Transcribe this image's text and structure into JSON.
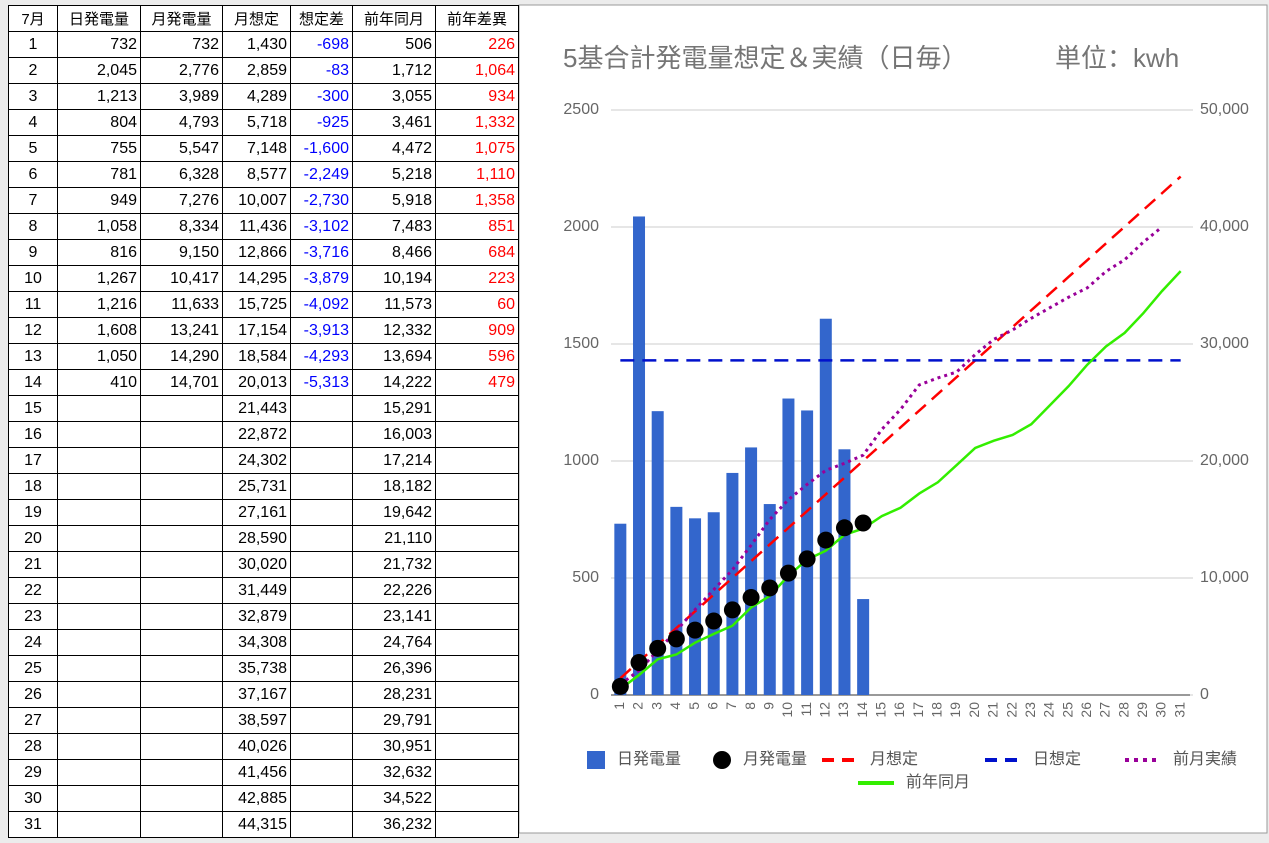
{
  "table": {
    "header": [
      "7月",
      "日発電量",
      "月発電量",
      "月想定",
      "想定差",
      "前年同月",
      "前年差異"
    ],
    "rows": [
      [
        "1",
        "732",
        "732",
        "1,430",
        "-698",
        "506",
        "226"
      ],
      [
        "2",
        "2,045",
        "2,776",
        "2,859",
        "-83",
        "1,712",
        "1,064"
      ],
      [
        "3",
        "1,213",
        "3,989",
        "4,289",
        "-300",
        "3,055",
        "934"
      ],
      [
        "4",
        "804",
        "4,793",
        "5,718",
        "-925",
        "3,461",
        "1,332"
      ],
      [
        "5",
        "755",
        "5,547",
        "7,148",
        "-1,600",
        "4,472",
        "1,075"
      ],
      [
        "6",
        "781",
        "6,328",
        "8,577",
        "-2,249",
        "5,218",
        "1,110"
      ],
      [
        "7",
        "949",
        "7,276",
        "10,007",
        "-2,730",
        "5,918",
        "1,358"
      ],
      [
        "8",
        "1,058",
        "8,334",
        "11,436",
        "-3,102",
        "7,483",
        "851"
      ],
      [
        "9",
        "816",
        "9,150",
        "12,866",
        "-3,716",
        "8,466",
        "684"
      ],
      [
        "10",
        "1,267",
        "10,417",
        "14,295",
        "-3,879",
        "10,194",
        "223"
      ],
      [
        "11",
        "1,216",
        "11,633",
        "15,725",
        "-4,092",
        "11,573",
        "60"
      ],
      [
        "12",
        "1,608",
        "13,241",
        "17,154",
        "-3,913",
        "12,332",
        "909"
      ],
      [
        "13",
        "1,050",
        "14,290",
        "18,584",
        "-4,293",
        "13,694",
        "596"
      ],
      [
        "14",
        "410",
        "14,701",
        "20,013",
        "-5,313",
        "14,222",
        "479"
      ],
      [
        "15",
        null,
        null,
        "21,443",
        null,
        "15,291",
        null
      ],
      [
        "16",
        null,
        null,
        "22,872",
        null,
        "16,003",
        null
      ],
      [
        "17",
        null,
        null,
        "24,302",
        null,
        "17,214",
        null
      ],
      [
        "18",
        null,
        null,
        "25,731",
        null,
        "18,182",
        null
      ],
      [
        "19",
        null,
        null,
        "27,161",
        null,
        "19,642",
        null
      ],
      [
        "20",
        null,
        null,
        "28,590",
        null,
        "21,110",
        null
      ],
      [
        "21",
        null,
        null,
        "30,020",
        null,
        "21,732",
        null
      ],
      [
        "22",
        null,
        null,
        "31,449",
        null,
        "22,226",
        null
      ],
      [
        "23",
        null,
        null,
        "32,879",
        null,
        "23,141",
        null
      ],
      [
        "24",
        null,
        null,
        "34,308",
        null,
        "24,764",
        null
      ],
      [
        "25",
        null,
        null,
        "35,738",
        null,
        "26,396",
        null
      ],
      [
        "26",
        null,
        null,
        "37,167",
        null,
        "28,231",
        null
      ],
      [
        "27",
        null,
        null,
        "38,597",
        null,
        "29,791",
        null
      ],
      [
        "28",
        null,
        null,
        "40,026",
        null,
        "30,951",
        null
      ],
      [
        "29",
        null,
        null,
        "41,456",
        null,
        "32,632",
        null
      ],
      [
        "30",
        null,
        null,
        "42,885",
        null,
        "34,522",
        null
      ],
      [
        "31",
        null,
        null,
        "44,315",
        null,
        "36,232",
        null
      ]
    ]
  },
  "chart_data": {
    "type": "combo",
    "title": "5基合計発電量想定＆実績（日毎）",
    "subtitle": "単位：kwh",
    "categories": [
      "1",
      "2",
      "3",
      "4",
      "5",
      "6",
      "7",
      "8",
      "9",
      "10",
      "11",
      "12",
      "13",
      "14",
      "15",
      "16",
      "17",
      "18",
      "19",
      "20",
      "21",
      "22",
      "23",
      "24",
      "25",
      "26",
      "27",
      "28",
      "29",
      "30",
      "31"
    ],
    "ylim": [
      0,
      2500
    ],
    "yticks": [
      0,
      500,
      1000,
      1500,
      2000,
      2500
    ],
    "y2lim": [
      0,
      50000
    ],
    "y2ticks": [
      0,
      {
        "value": 10000,
        "label": "10,000"
      },
      {
        "value": 20000,
        "label": "20,000"
      },
      {
        "value": 30000,
        "label": "30,000"
      },
      {
        "value": 40000,
        "label": "40,000"
      },
      {
        "value": 50000,
        "label": "50,000"
      }
    ],
    "grid": true,
    "legend": "bottom",
    "series": [
      {
        "name": "日発電量",
        "type": "bar",
        "color": "#3366cc",
        "values": [
          732,
          2045,
          1213,
          804,
          755,
          781,
          949,
          1058,
          816,
          1267,
          1216,
          1608,
          1050,
          410,
          null,
          null,
          null,
          null,
          null,
          null,
          null,
          null,
          null,
          null,
          null,
          null,
          null,
          null,
          null,
          null,
          null
        ]
      },
      {
        "name": "月発電量",
        "type": "scatter",
        "color": "#000000",
        "axis": "y2",
        "values": [
          732,
          2776,
          3989,
          4793,
          5547,
          6328,
          7276,
          8334,
          9150,
          10417,
          11633,
          13241,
          14290,
          14701,
          null,
          null,
          null,
          null,
          null,
          null,
          null,
          null,
          null,
          null,
          null,
          null,
          null,
          null,
          null,
          null,
          null
        ]
      },
      {
        "name": "月想定",
        "type": "line",
        "dash": "dashed",
        "color": "#ff0000",
        "axis": "y2",
        "values": [
          1430,
          2859,
          4289,
          5718,
          7148,
          8577,
          10007,
          11436,
          12866,
          14295,
          15725,
          17154,
          18584,
          20013,
          21443,
          22872,
          24302,
          25731,
          27161,
          28590,
          30020,
          31449,
          32879,
          34308,
          35738,
          37167,
          38597,
          40026,
          41456,
          42885,
          44315
        ]
      },
      {
        "name": "日想定",
        "type": "line",
        "dash": "dashed",
        "color": "#0011cc",
        "values": [
          1430,
          1430,
          1430,
          1430,
          1430,
          1430,
          1430,
          1430,
          1430,
          1430,
          1430,
          1430,
          1430,
          1430,
          1430,
          1430,
          1430,
          1430,
          1430,
          1430,
          1430,
          1430,
          1430,
          1430,
          1430,
          1430,
          1430,
          1430,
          1430,
          1430,
          1430
        ]
      },
      {
        "name": "前月実績",
        "type": "line",
        "dash": "dotted",
        "color": "#990099",
        "axis": "y2",
        "values": [
          900,
          2100,
          3800,
          5500,
          7300,
          9000,
          10700,
          12800,
          15000,
          16700,
          18000,
          19200,
          19800,
          20500,
          22700,
          24400,
          26500,
          27100,
          27600,
          29100,
          30400,
          31200,
          32200,
          33100,
          34000,
          34800,
          36200,
          37200,
          38700,
          40000,
          null
        ]
      },
      {
        "name": "前年同月",
        "type": "line",
        "dash": "solid",
        "color": "#33ee00",
        "axis": "y2",
        "values": [
          506,
          1712,
          3055,
          3461,
          4472,
          5218,
          5918,
          7483,
          8466,
          10194,
          11573,
          12332,
          13694,
          14222,
          15291,
          16003,
          17214,
          18182,
          19642,
          21110,
          21732,
          22226,
          23141,
          24764,
          26396,
          28231,
          29791,
          30951,
          32632,
          34522,
          36232
        ]
      }
    ]
  }
}
